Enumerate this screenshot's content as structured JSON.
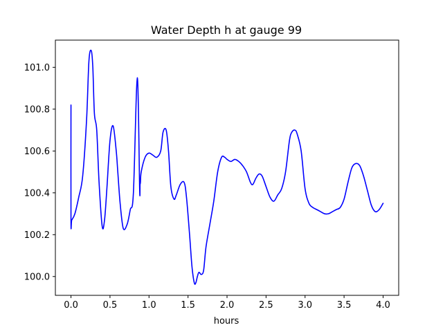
{
  "chart_data": {
    "type": "line",
    "title": "Water Depth h at gauge 99",
    "xlabel": "hours",
    "ylabel": "",
    "xlim": [
      -0.2,
      4.2
    ],
    "ylim": [
      99.91,
      101.13
    ],
    "xticks": [
      0.0,
      0.5,
      1.0,
      1.5,
      2.0,
      2.5,
      3.0,
      3.5,
      4.0
    ],
    "xtick_labels": [
      "0.0",
      "0.5",
      "1.0",
      "1.5",
      "2.0",
      "2.5",
      "3.0",
      "3.5",
      "4.0"
    ],
    "yticks": [
      100.0,
      100.2,
      100.4,
      100.6,
      100.8,
      101.0
    ],
    "ytick_labels": [
      "100.0",
      "100.2",
      "100.4",
      "100.6",
      "100.8",
      "101.0"
    ],
    "grid": false,
    "series": [
      {
        "color": "#0000ff",
        "x": [
          0.0,
          0.0,
          0.01,
          0.05,
          0.1,
          0.15,
          0.2,
          0.23,
          0.26,
          0.28,
          0.3,
          0.33,
          0.36,
          0.4,
          0.43,
          0.46,
          0.5,
          0.54,
          0.58,
          0.6,
          0.63,
          0.67,
          0.72,
          0.76,
          0.8,
          0.85,
          0.88,
          0.885,
          0.89,
          0.9,
          0.95,
          1.0,
          1.05,
          1.1,
          1.15,
          1.18,
          1.22,
          1.25,
          1.28,
          1.32,
          1.35,
          1.4,
          1.45,
          1.48,
          1.52,
          1.55,
          1.58,
          1.6,
          1.62,
          1.64,
          1.67,
          1.7,
          1.73,
          1.78,
          1.83,
          1.88,
          1.93,
          1.97,
          2.0,
          2.05,
          2.1,
          2.15,
          2.2,
          2.25,
          2.3,
          2.33,
          2.37,
          2.41,
          2.45,
          2.5,
          2.55,
          2.6,
          2.65,
          2.7,
          2.75,
          2.8,
          2.83,
          2.87,
          2.9,
          2.95,
          3.0,
          3.05,
          3.1,
          3.15,
          3.2,
          3.25,
          3.3,
          3.35,
          3.4,
          3.45,
          3.5,
          3.55,
          3.6,
          3.65,
          3.7,
          3.75,
          3.8,
          3.85,
          3.9,
          3.95,
          4.0
        ],
        "y": [
          100.82,
          100.27,
          100.27,
          100.3,
          100.38,
          100.48,
          100.75,
          101.03,
          101.08,
          101.0,
          100.78,
          100.7,
          100.45,
          100.24,
          100.27,
          100.42,
          100.65,
          100.72,
          100.6,
          100.5,
          100.35,
          100.23,
          100.25,
          100.32,
          100.4,
          100.95,
          100.42,
          100.44,
          100.45,
          100.5,
          100.57,
          100.59,
          100.58,
          100.57,
          100.6,
          100.69,
          100.7,
          100.6,
          100.43,
          100.37,
          100.39,
          100.44,
          100.45,
          100.38,
          100.2,
          100.05,
          99.97,
          99.97,
          100.0,
          100.02,
          100.01,
          100.03,
          100.14,
          100.25,
          100.36,
          100.5,
          100.57,
          100.57,
          100.56,
          100.55,
          100.56,
          100.55,
          100.53,
          100.5,
          100.45,
          100.44,
          100.47,
          100.49,
          100.48,
          100.43,
          100.38,
          100.36,
          100.39,
          100.42,
          100.5,
          100.65,
          100.69,
          100.7,
          100.68,
          100.6,
          100.42,
          100.35,
          100.33,
          100.32,
          100.31,
          100.3,
          100.3,
          100.31,
          100.32,
          100.33,
          100.37,
          100.45,
          100.52,
          100.54,
          100.53,
          100.48,
          100.41,
          100.34,
          100.31,
          100.32,
          100.35
        ]
      }
    ]
  }
}
